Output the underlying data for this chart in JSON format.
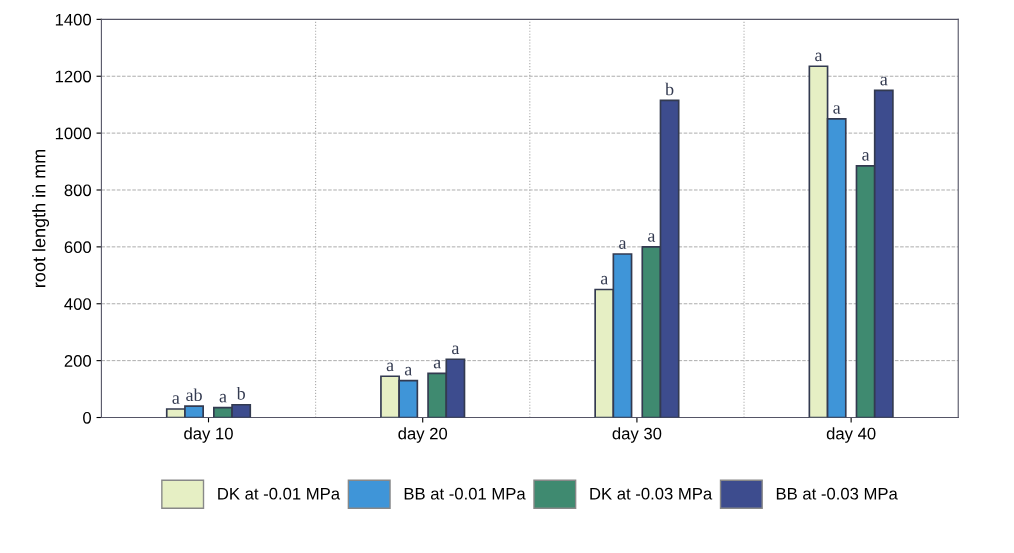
{
  "chart_data": {
    "type": "bar",
    "ylabel": "root length in mm",
    "categories": [
      "day 10",
      "day 20",
      "day 30",
      "day 40"
    ],
    "series": [
      {
        "name": "DK at -0.01 MPa",
        "color": "#e6efc4",
        "values": [
          30,
          145,
          450,
          1235
        ],
        "value_labels": [
          "a",
          "a",
          "a",
          "a"
        ]
      },
      {
        "name": "BB at -0.01 MPa",
        "color": "#3f95d8",
        "values": [
          40,
          130,
          575,
          1050
        ],
        "value_labels": [
          "ab",
          "a",
          "a",
          "a"
        ]
      },
      {
        "name": "DK at -0.03 MPa",
        "color": "#3f8a70",
        "values": [
          35,
          155,
          600,
          885
        ],
        "value_labels": [
          "a",
          "a",
          "a",
          "a"
        ]
      },
      {
        "name": "BB at -0.03 MPa",
        "color": "#3d4c8e",
        "values": [
          45,
          205,
          1115,
          1150
        ],
        "value_labels": [
          "b",
          "a",
          "b",
          "a"
        ]
      }
    ],
    "ylim": [
      0,
      1400
    ],
    "yticks": [
      0,
      200,
      400,
      600,
      800,
      1000,
      1200,
      1400
    ],
    "grid": true,
    "legend": "bottom"
  }
}
